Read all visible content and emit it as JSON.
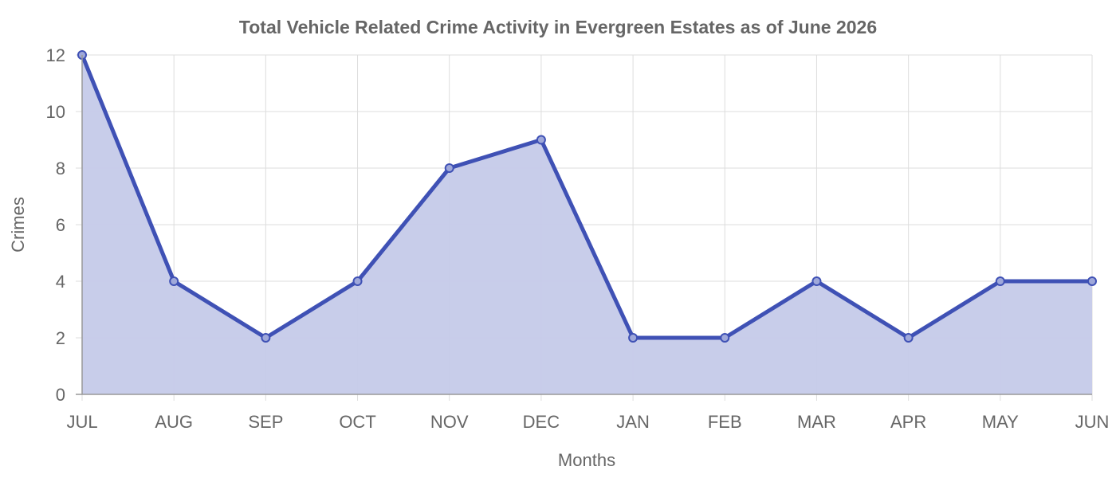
{
  "chart_data": {
    "type": "area",
    "title": "Total Vehicle Related Crime Activity in Evergreen Estates as of June 2026",
    "xlabel": "Months",
    "ylabel": "Crimes",
    "categories": [
      "JUL",
      "AUG",
      "SEP",
      "OCT",
      "NOV",
      "DEC",
      "JAN",
      "FEB",
      "MAR",
      "APR",
      "MAY",
      "JUN"
    ],
    "series": [
      {
        "values": [
          12,
          4,
          2,
          4,
          8,
          9,
          2,
          2,
          4,
          2,
          4,
          4
        ]
      }
    ],
    "ylim": [
      0,
      12
    ],
    "yticks": [
      "0",
      "2",
      "4",
      "6",
      "8",
      "10",
      "12"
    ],
    "grid": true,
    "legend": "none",
    "colors": {
      "line": "#3f51b5",
      "fill": "#c5cae9",
      "grid": "#dddddd",
      "axis": "#999999",
      "text": "#666666"
    }
  }
}
